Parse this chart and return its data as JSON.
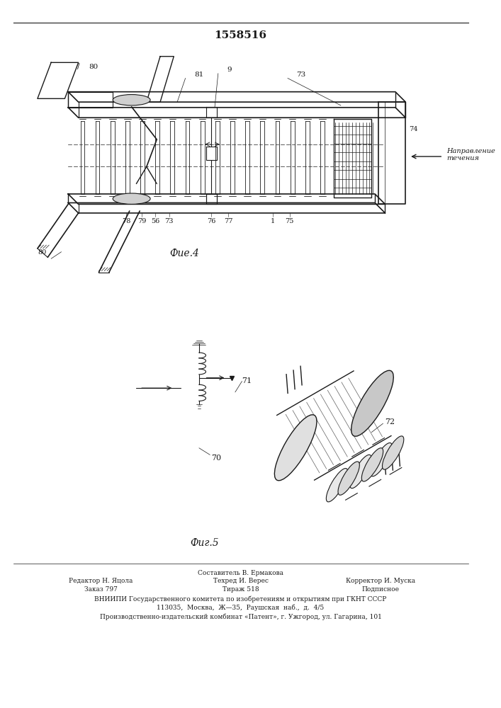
{
  "patent_number": "1558516",
  "background_color": "#ffffff",
  "line_color": "#1a1a1a",
  "fig4_caption": "Фие.4",
  "fig5_caption": "Фиг.5",
  "footer_line1": "Составитель В. Ермакова",
  "footer_line2_left": "Редактор Н. Яцола",
  "footer_line2_mid": "Техред И. Верес",
  "footer_line2_right": "Корректор И. Муска",
  "footer_line3_left": "Заказ 797",
  "footer_line3_mid": "Тираж 518",
  "footer_line3_right": "Подписное",
  "footer_line4": "ВНИИПИ Государственного комитета по изобретениям и открытиям при ГКНТ СССР",
  "footer_line5": "113035,  Москва,  Ж—35,  Раушская  наб.,  д.  4/5",
  "footer_line6": "Производственно-издательский комбинат «Патент», г. Ужгород, ул. Гагарина, 101",
  "direction_text": "Направление\nтечения"
}
